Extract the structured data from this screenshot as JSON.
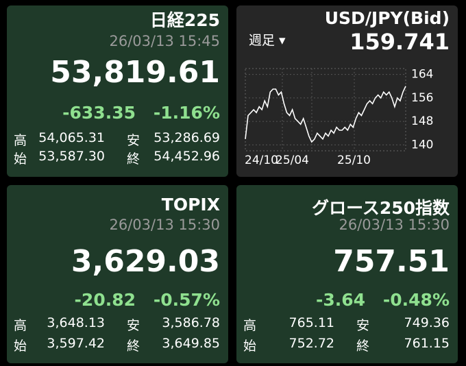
{
  "cards": [
    {
      "title": "日経225",
      "datetime": "26/03/13 15:45",
      "price": "53,819.61",
      "change": "-633.35",
      "change_pct": "-1.16%",
      "high_label": "高",
      "high": "54,065.31",
      "low_label": "安",
      "low": "53,286.69",
      "open_label": "始",
      "open": "53,587.30",
      "close_label": "終",
      "close": "54,452.96"
    },
    {
      "title": "TOPIX",
      "datetime": "26/03/13 15:30",
      "price": "3,629.03",
      "change": "-20.82",
      "change_pct": "-0.57%",
      "high_label": "高",
      "high": "3,648.13",
      "low_label": "安",
      "low": "3,586.78",
      "open_label": "始",
      "open": "3,597.42",
      "close_label": "終",
      "close": "3,649.85"
    },
    {
      "title": "グロース250指数",
      "datetime": "26/03/13 15:30",
      "price": "757.51",
      "change": "-3.64",
      "change_pct": "-0.48%",
      "high_label": "高",
      "high": "765.11",
      "low_label": "安",
      "low": "749.36",
      "open_label": "始",
      "open": "752.72",
      "close_label": "終",
      "close": "761.15"
    }
  ],
  "fx": {
    "title": "USD/JPY(Bid)",
    "period": "週足",
    "price": "159.741",
    "chart": {
      "type": "line",
      "color": "#ffffff",
      "values": [
        142,
        150,
        151,
        152,
        151,
        153,
        152,
        155,
        153,
        158,
        159,
        159,
        157,
        158,
        154,
        151,
        150,
        152,
        149,
        148,
        147,
        149,
        146,
        143,
        141,
        142,
        144,
        143,
        142,
        144,
        143,
        145,
        144,
        146,
        145,
        145,
        146,
        145,
        147,
        146,
        149,
        151,
        150,
        152,
        154,
        155,
        154,
        156,
        157,
        156,
        158,
        157,
        158,
        156,
        153,
        156,
        155,
        158,
        160
      ],
      "ylim": [
        138,
        166
      ],
      "yticks": [
        164,
        156,
        148,
        140
      ],
      "x_labels": [
        "24/10",
        "25/04",
        "25/10"
      ]
    }
  }
}
